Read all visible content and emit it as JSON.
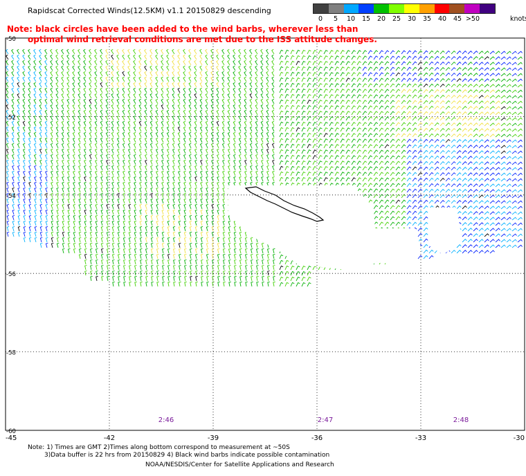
{
  "header": {
    "title": "Rapidscat Corrected Winds(12.5KM) v1.1 20150829 descending",
    "note_line1": "Note: black circles have been added to the wind barbs, wherever less than",
    "note_line2": "optimal wind retrieval conditions are met due to the ISS attitude changes."
  },
  "legend": {
    "unit": "knots",
    "labels": [
      "0",
      "5",
      "10",
      "15",
      "20",
      "25",
      "30",
      "35",
      "40",
      "45",
      ">50"
    ],
    "colors": [
      "#404040",
      "#808080",
      "#00a8ff",
      "#0040ff",
      "#00c000",
      "#80ff00",
      "#ffff00",
      "#ffa000",
      "#ff0000",
      "#a05020",
      "#c000c0",
      "#400080"
    ]
  },
  "map": {
    "lat_labels": [
      "-50",
      "-52",
      "-54",
      "-56",
      "-58",
      "-60"
    ],
    "lon_labels": [
      "-45",
      "-42",
      "-39",
      "-36",
      "-33",
      "-30"
    ],
    "time_labels": [
      "2:46",
      "2:47",
      "2:48"
    ],
    "time_color": "#7a1a9a",
    "wind_colors": {
      "black": "#000000",
      "blue": "#0020ff",
      "cyan": "#00b0ff",
      "green": "#00b000",
      "light_green": "#40d000",
      "yellow": "#f0e040"
    }
  },
  "footer": {
    "note_line1": "Note: 1) Times are GMT 2)Times along bottom correspond to measurement at ~50S",
    "note_line2": "3)Data buffer is 22 hrs from 20150829 4) Black wind barbs indicate possible contamination",
    "credit": "NOAA/NESDIS/Center for Satellite Applications and Research"
  }
}
